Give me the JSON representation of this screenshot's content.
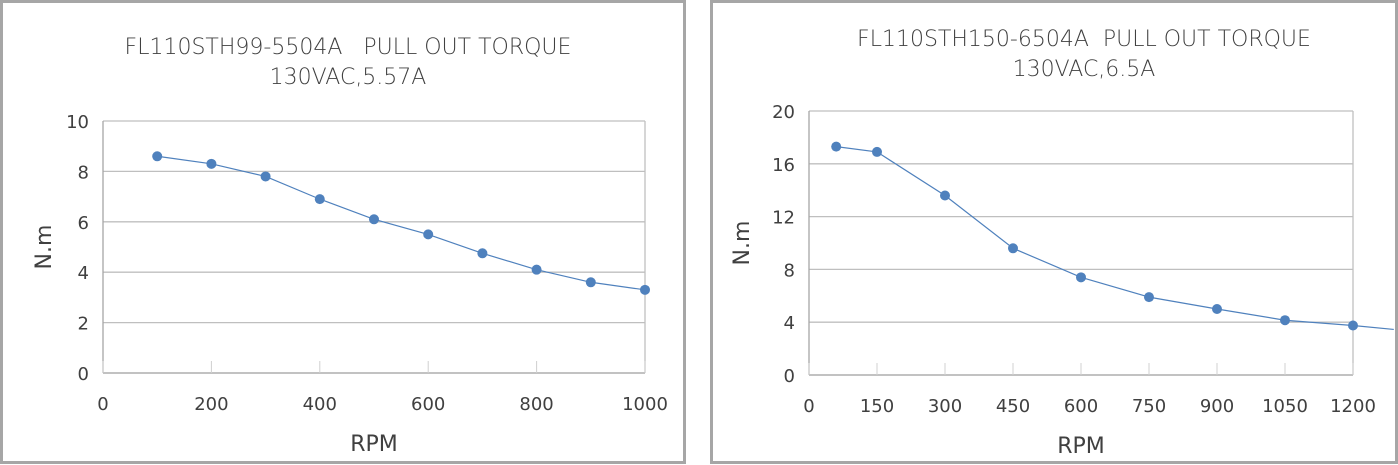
{
  "chart_data": [
    {
      "type": "line",
      "title": "FL110STH99-5504A   PULL OUT TORQUE",
      "subtitle": "130VAC,5.57A",
      "xlabel": "RPM",
      "ylabel": "N.m",
      "xlim": [
        0,
        1000
      ],
      "ylim": [
        0,
        10
      ],
      "xticks": [
        0,
        200,
        400,
        600,
        800,
        1000
      ],
      "yticks": [
        0,
        2,
        4,
        6,
        8,
        10
      ],
      "grid": "horizontal",
      "color": "#4f81bd",
      "x": [
        100,
        200,
        300,
        400,
        500,
        600,
        700,
        800,
        900,
        1000
      ],
      "y": [
        8.6,
        8.3,
        7.8,
        6.9,
        6.1,
        5.5,
        4.75,
        4.1,
        3.6,
        3.3
      ]
    },
    {
      "type": "line",
      "title": "FL110STH150-6504A  PULL OUT TORQUE",
      "subtitle": "130VAC,6.5A",
      "xlabel": "RPM",
      "ylabel": "N.m",
      "xlim": [
        0,
        1200
      ],
      "ylim": [
        0,
        20
      ],
      "xticks": [
        0,
        150,
        300,
        450,
        600,
        750,
        900,
        1050,
        1200
      ],
      "yticks": [
        0,
        4,
        8,
        12,
        16,
        20
      ],
      "grid": "horizontal",
      "color": "#4f81bd",
      "x": [
        60,
        150,
        300,
        450,
        600,
        750,
        900,
        1050,
        1200
      ],
      "y": [
        17.3,
        16.9,
        13.6,
        9.6,
        7.4,
        5.9,
        5.0,
        4.15,
        3.75
      ],
      "line_extension": [
        1290,
        3.45
      ]
    }
  ]
}
